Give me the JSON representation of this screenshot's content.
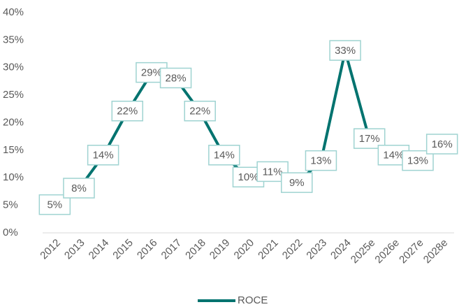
{
  "chart_data": {
    "type": "line",
    "categories": [
      "2012",
      "2013",
      "2014",
      "2015",
      "2016",
      "2017",
      "2018",
      "2019",
      "2020",
      "2021",
      "2022",
      "2023",
      "2024",
      "2025e",
      "2026e",
      "2027e",
      "2028e"
    ],
    "series": [
      {
        "name": "ROCE",
        "color": "#00736f",
        "values": [
          5,
          8,
          14,
          22,
          29,
          28,
          22,
          14,
          10,
          11,
          9,
          13,
          33,
          17,
          14,
          13,
          16
        ],
        "value_labels": [
          "5%",
          "8%",
          "14%",
          "22%",
          "29%",
          "28%",
          "22%",
          "14%",
          "10%",
          "11%",
          "9%",
          "13%",
          "33%",
          "17%",
          "14%",
          "13%",
          "16%"
        ]
      }
    ],
    "ylim": [
      0,
      40
    ],
    "yticks": [
      {
        "value": 0,
        "label": "0%"
      },
      {
        "value": 5,
        "label": "5%"
      },
      {
        "value": 10,
        "label": "10%"
      },
      {
        "value": 15,
        "label": "15%"
      },
      {
        "value": 20,
        "label": "20%"
      },
      {
        "value": 25,
        "label": "25%"
      },
      {
        "value": 30,
        "label": "30%"
      },
      {
        "value": 35,
        "label": "35%"
      },
      {
        "value": 40,
        "label": "40%"
      }
    ],
    "grid": false,
    "legend": "bottom"
  }
}
